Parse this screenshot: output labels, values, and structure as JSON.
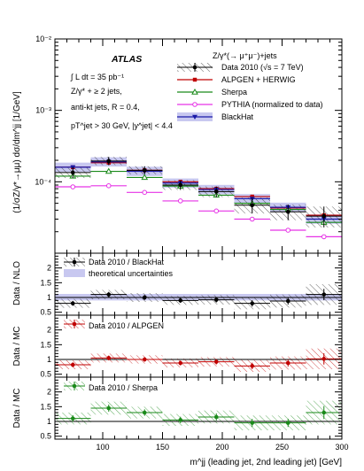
{
  "chart_data": [
    {
      "type": "scatter",
      "panel": "main",
      "yscale": "log",
      "ylabel": "(1/σZ/γ*→μμ) dσ/dm^jj [1/GeV]",
      "xlim": [
        60,
        300
      ],
      "ylim_exp": [
        -5,
        -2
      ],
      "y_tick_labels": [
        "10⁻⁴",
        "10⁻³",
        "10⁻²"
      ],
      "annotations": {
        "atlas": "ATLAS",
        "lumi": "∫ L dt = 35 pb⁻¹",
        "selection": "Z/γ* + ≥ 2 jets,",
        "algorithm": "anti-kt jets,  R = 0.4,",
        "cuts": "pT^jet > 30 GeV, |y^jet| < 4.4"
      },
      "legend": {
        "title": "Z/γ*(→ μ⁺μ⁻)+jets",
        "entries": [
          "Data 2010 (√s = 7 TeV)",
          "ALPGEN + HERWIG",
          "Sherpa",
          "PYTHIA (normalized to data)",
          "BlackHat"
        ]
      },
      "colors": {
        "data": "#000000",
        "alpgen": "#c00000",
        "sherpa": "#1a8a1a",
        "pythia": "#e633e6",
        "blackhat": "#1a1aa8",
        "band": "#c8c8f0"
      },
      "bin_edges": [
        60,
        90,
        120,
        150,
        180,
        210,
        240,
        270,
        300
      ],
      "series": [
        {
          "name": "Data 2010 (√s = 7 TeV)",
          "values": [
            0.000135,
            0.000195,
            0.000145,
            9e-05,
            7.3e-05,
            4.7e-05,
            3.8e-05,
            3.3e-05
          ],
          "err_lo": [
            2.2e-05,
            2.4e-05,
            1.8e-05,
            1.3e-05,
            1.2e-05,
            1.1e-05,
            9e-06,
            1e-05
          ],
          "err_hi": [
            2.6e-05,
            2.8e-05,
            2e-05,
            1.5e-05,
            1.3e-05,
            1.3e-05,
            1e-05,
            1.2e-05
          ]
        },
        {
          "name": "ALPGEN + HERWIG",
          "values": [
            0.00016,
            0.000185,
            0.000145,
            0.0001,
            8e-05,
            6.2e-05,
            4.3e-05,
            3.4e-05
          ]
        },
        {
          "name": "Sherpa",
          "values": [
            0.00012,
            0.00014,
            0.000115,
            8.7e-05,
            6.5e-05,
            5e-05,
            4.1e-05,
            2.7e-05
          ]
        },
        {
          "name": "PYTHIA (normalized to data)",
          "values": [
            8.5e-05,
            8.8e-05,
            7.1e-05,
            5.4e-05,
            3.9e-05,
            3e-05,
            2.1e-05,
            1.7e-05
          ]
        },
        {
          "name": "BlackHat",
          "values": [
            0.00016,
            0.00019,
            0.00014,
            9.6e-05,
            7.8e-05,
            5.8e-05,
            4.4e-05,
            3e-05
          ]
        }
      ]
    },
    {
      "type": "scatter",
      "panel": "ratio",
      "ylabel": "Data / NLO",
      "legend": [
        "Data 2010 / BlackHat",
        "theoretical uncertainties"
      ],
      "color": "#000000",
      "ylim": [
        0.4,
        2.5
      ],
      "y_tick_labels": [
        "0.5",
        "1",
        "1.5",
        "2"
      ],
      "x": [
        75,
        105,
        135,
        165,
        195,
        225,
        255,
        285
      ],
      "values": [
        0.8,
        1.1,
        1.0,
        0.9,
        0.92,
        0.8,
        0.88,
        1.1
      ],
      "err": [
        0.15,
        0.16,
        0.15,
        0.15,
        0.16,
        0.2,
        0.22,
        0.35
      ]
    },
    {
      "type": "scatter",
      "panel": "ratio",
      "ylabel": "Data / MC",
      "legend": [
        "Data 2010 / ALPGEN"
      ],
      "color": "#c00000",
      "ylim": [
        0.4,
        2.5
      ],
      "y_tick_labels": [
        "0.5",
        "1",
        "1.5",
        "2"
      ],
      "x": [
        75,
        105,
        135,
        165,
        195,
        225,
        255,
        285
      ],
      "values": [
        0.82,
        1.05,
        1.0,
        0.88,
        0.92,
        0.78,
        0.88,
        1.02
      ],
      "err": [
        0.15,
        0.15,
        0.14,
        0.15,
        0.16,
        0.2,
        0.22,
        0.35
      ]
    },
    {
      "type": "scatter",
      "panel": "ratio",
      "ylabel": "Data / MC",
      "legend": [
        "Data 2010 / Sherpa"
      ],
      "color": "#1a8a1a",
      "ylim": [
        0.4,
        2.5
      ],
      "y_tick_labels": [
        "0.5",
        "1",
        "1.5",
        "2"
      ],
      "x": [
        75,
        105,
        135,
        165,
        195,
        225,
        255,
        285
      ],
      "values": [
        1.1,
        1.45,
        1.3,
        1.05,
        1.15,
        0.95,
        0.95,
        1.3
      ],
      "err": [
        0.2,
        0.22,
        0.2,
        0.2,
        0.22,
        0.25,
        0.25,
        0.4
      ]
    }
  ],
  "x_axis": {
    "label": "m^jj (leading jet, 2nd leading jet) [GeV]",
    "ticks": [
      100,
      150,
      200,
      250,
      300
    ],
    "tick_labels": [
      "100",
      "150",
      "200",
      "250",
      "300"
    ]
  }
}
